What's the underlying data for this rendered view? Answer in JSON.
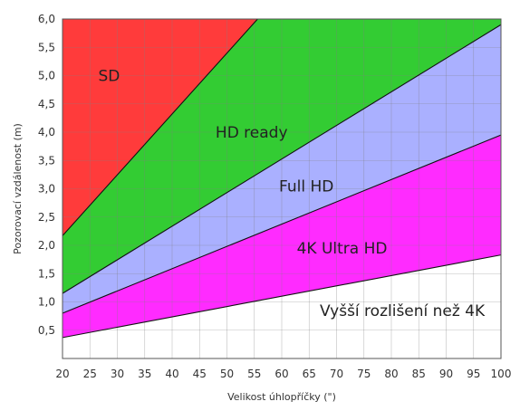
{
  "chart_data": {
    "type": "area",
    "xlabel": "Velikost úhlopříčky (\")",
    "ylabel": "Pozorovací vzdálenost (m)",
    "xlim": [
      20,
      100
    ],
    "ylim": [
      0,
      6
    ],
    "x_ticks": [
      "20",
      "25",
      "30",
      "35",
      "40",
      "45",
      "50",
      "55",
      "60",
      "65",
      "70",
      "75",
      "80",
      "85",
      "90",
      "95",
      "100"
    ],
    "y_ticks": [
      "0,5",
      "1,0",
      "1,5",
      "2,0",
      "2,5",
      "3,0",
      "3,5",
      "4,0",
      "4,5",
      "5,0",
      "5,5",
      "6,0"
    ],
    "grid": true,
    "boundaries": [
      {
        "from": "Vyšší rozlišení než 4K",
        "to": "4K Ultra HD",
        "x": [
          20,
          100
        ],
        "y": [
          0.37,
          1.83
        ]
      },
      {
        "from": "4K Ultra HD",
        "to": "Full HD",
        "x": [
          20,
          100
        ],
        "y": [
          0.8,
          3.95
        ]
      },
      {
        "from": "Full HD",
        "to": "HD ready",
        "x": [
          20,
          100
        ],
        "y": [
          1.15,
          5.9
        ]
      },
      {
        "from": "HD ready",
        "to": "SD",
        "x": [
          20,
          55.6
        ],
        "y": [
          2.17,
          6.0
        ]
      }
    ],
    "series": [
      {
        "name": "SD",
        "color": "#ff3b3b"
      },
      {
        "name": "HD ready",
        "color": "#33cc33"
      },
      {
        "name": "Full HD",
        "color": "#aab0ff"
      },
      {
        "name": "4K Ultra HD",
        "color": "#ff2bff"
      },
      {
        "name": "Vyšší rozlišení než 4K",
        "color": "#ffffff"
      }
    ],
    "region_labels": [
      {
        "text": "SD",
        "x": 28.5,
        "y": 5.0
      },
      {
        "text": "HD ready",
        "x": 54.5,
        "y": 4.0
      },
      {
        "text": "Full HD",
        "x": 64.5,
        "y": 3.05
      },
      {
        "text": "4K Ultra HD",
        "x": 71,
        "y": 1.95
      },
      {
        "text": "Vyšší rozlišení než 4K",
        "x": 82,
        "y": 0.85
      }
    ]
  }
}
